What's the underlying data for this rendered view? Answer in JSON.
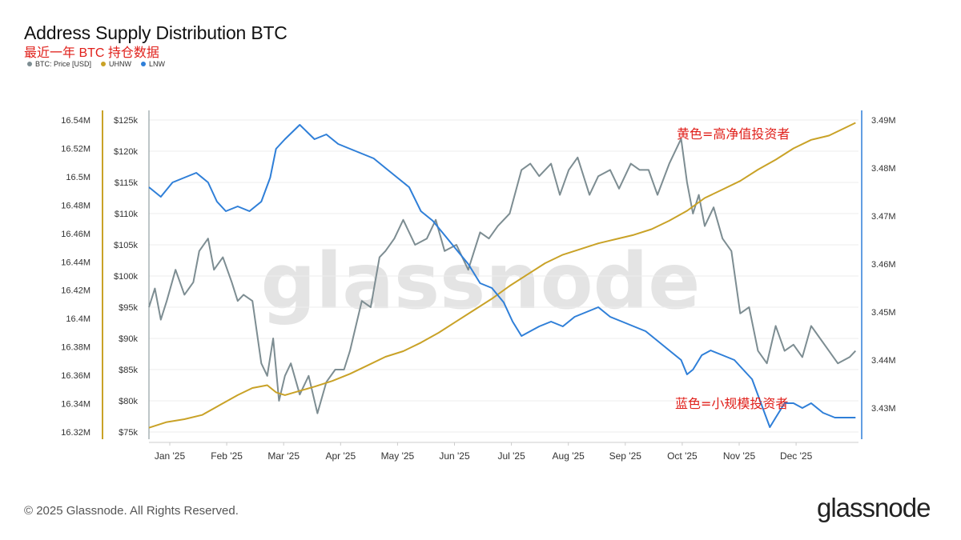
{
  "chart_data": {
    "type": "line",
    "title": "Address Supply Distribution BTC",
    "subtitle": "最近一年 BTC 持仓数据",
    "legend": [
      {
        "name": "BTC: Price [USD]",
        "color": "#7d8d92"
      },
      {
        "name": "UHNW",
        "color": "#c9a227"
      },
      {
        "name": "LNW",
        "color": "#2f7fd8"
      }
    ],
    "x_labels": [
      "Jan '25",
      "Feb '25",
      "Mar '25",
      "Apr '25",
      "May '25",
      "Jun '25",
      "Jul '25",
      "Aug '25",
      "Sep '25",
      "Oct '25",
      "Nov '25",
      "Dec '25"
    ],
    "x_range": [
      0,
      12
    ],
    "axes": {
      "uhnw": {
        "ylim": [
          16.32,
          16.54
        ],
        "ticks": [
          16.32,
          16.34,
          16.36,
          16.38,
          16.4,
          16.42,
          16.44,
          16.46,
          16.48,
          16.5,
          16.52,
          16.54
        ],
        "tick_labels": [
          "16.32M",
          "16.34M",
          "16.36M",
          "16.38M",
          "16.4M",
          "16.42M",
          "16.44M",
          "16.46M",
          "16.48M",
          "16.5M",
          "16.52M",
          "16.54M"
        ]
      },
      "price": {
        "ylim": [
          75,
          125
        ],
        "ticks": [
          75,
          80,
          85,
          90,
          95,
          100,
          105,
          110,
          115,
          120,
          125
        ],
        "tick_labels": [
          "$75k",
          "$80k",
          "$85k",
          "$90k",
          "$95k",
          "$100k",
          "$105k",
          "$110k",
          "$115k",
          "$120k",
          "$125k"
        ]
      },
      "lnw": {
        "ylim": [
          3.425,
          3.49
        ],
        "ticks": [
          3.43,
          3.44,
          3.45,
          3.46,
          3.47,
          3.48,
          3.49
        ],
        "tick_labels": [
          "3.43M",
          "3.44M",
          "3.45M",
          "3.46M",
          "3.47M",
          "3.48M",
          "3.49M"
        ]
      }
    },
    "series": [
      {
        "name": "BTC: Price [USD]",
        "axis": "price",
        "color": "#7d8d92",
        "x": [
          0,
          0.1,
          0.2,
          0.3,
          0.45,
          0.6,
          0.75,
          0.85,
          1.0,
          1.1,
          1.25,
          1.4,
          1.5,
          1.6,
          1.75,
          1.9,
          2.0,
          2.1,
          2.2,
          2.3,
          2.4,
          2.55,
          2.7,
          2.85,
          3.0,
          3.15,
          3.3,
          3.4,
          3.5,
          3.6,
          3.75,
          3.9,
          4.0,
          4.15,
          4.3,
          4.5,
          4.7,
          4.85,
          5.0,
          5.2,
          5.4,
          5.6,
          5.75,
          5.9,
          6.1,
          6.3,
          6.45,
          6.6,
          6.8,
          6.95,
          7.1,
          7.25,
          7.45,
          7.6,
          7.8,
          7.95,
          8.15,
          8.3,
          8.45,
          8.6,
          8.8,
          9.0,
          9.1,
          9.2,
          9.3,
          9.4,
          9.55,
          9.7,
          9.85,
          10.0,
          10.15,
          10.3,
          10.45,
          10.6,
          10.75,
          10.9,
          11.05,
          11.2,
          11.35,
          11.5,
          11.65,
          11.85,
          11.95
        ],
        "values": [
          95,
          98,
          93,
          96,
          101,
          97,
          99,
          104,
          106,
          101,
          103,
          99,
          96,
          97,
          96,
          86,
          84,
          90,
          80,
          84,
          86,
          81,
          84,
          78,
          83,
          85,
          85,
          88,
          92,
          96,
          95,
          103,
          104,
          106,
          109,
          105,
          106,
          109,
          104,
          105,
          101,
          107,
          106,
          108,
          110,
          117,
          118,
          116,
          118,
          113,
          117,
          119,
          113,
          116,
          117,
          114,
          118,
          117,
          117,
          113,
          118,
          122,
          115,
          110,
          113,
          108,
          111,
          106,
          104,
          94,
          95,
          88,
          86,
          92,
          88,
          89,
          87,
          92,
          90,
          88,
          86,
          87,
          88
        ]
      },
      {
        "name": "UHNW",
        "axis": "uhnw",
        "color": "#c9a227",
        "x": [
          0,
          0.3,
          0.6,
          0.9,
          1.2,
          1.5,
          1.75,
          2.0,
          2.15,
          2.3,
          2.55,
          2.8,
          3.1,
          3.4,
          3.7,
          4.0,
          4.3,
          4.6,
          4.9,
          5.2,
          5.5,
          5.8,
          6.1,
          6.4,
          6.7,
          7.0,
          7.3,
          7.6,
          7.9,
          8.2,
          8.5,
          8.8,
          9.1,
          9.4,
          9.7,
          10.0,
          10.3,
          10.6,
          10.9,
          11.2,
          11.5,
          11.8,
          11.95
        ],
        "values": [
          16.323,
          16.327,
          16.329,
          16.332,
          16.339,
          16.346,
          16.351,
          16.353,
          16.348,
          16.346,
          16.349,
          16.352,
          16.356,
          16.361,
          16.367,
          16.373,
          16.377,
          16.383,
          16.39,
          16.398,
          16.406,
          16.414,
          16.423,
          16.431,
          16.439,
          16.445,
          16.449,
          16.453,
          16.456,
          16.459,
          16.463,
          16.469,
          16.476,
          16.485,
          16.491,
          16.497,
          16.505,
          16.512,
          16.52,
          16.526,
          16.529,
          16.535,
          16.538
        ]
      },
      {
        "name": "LNW",
        "axis": "lnw",
        "color": "#2f7fd8",
        "x": [
          0,
          0.2,
          0.4,
          0.6,
          0.8,
          1.0,
          1.15,
          1.3,
          1.5,
          1.7,
          1.9,
          2.05,
          2.15,
          2.3,
          2.55,
          2.8,
          3.0,
          3.2,
          3.4,
          3.6,
          3.8,
          4.0,
          4.2,
          4.4,
          4.6,
          4.8,
          5.0,
          5.2,
          5.4,
          5.6,
          5.8,
          6.0,
          6.15,
          6.3,
          6.45,
          6.6,
          6.8,
          7.0,
          7.2,
          7.4,
          7.6,
          7.8,
          8.0,
          8.2,
          8.4,
          8.6,
          8.8,
          9.0,
          9.1,
          9.2,
          9.35,
          9.5,
          9.7,
          9.9,
          10.05,
          10.2,
          10.35,
          10.5,
          10.6,
          10.75,
          10.9,
          11.05,
          11.2,
          11.4,
          11.6,
          11.8,
          11.95
        ],
        "values": [
          3.476,
          3.474,
          3.477,
          3.478,
          3.479,
          3.477,
          3.473,
          3.471,
          3.472,
          3.471,
          3.473,
          3.478,
          3.484,
          3.486,
          3.489,
          3.486,
          3.487,
          3.485,
          3.484,
          3.483,
          3.482,
          3.48,
          3.478,
          3.476,
          3.471,
          3.469,
          3.466,
          3.463,
          3.46,
          3.456,
          3.455,
          3.452,
          3.448,
          3.445,
          3.446,
          3.447,
          3.448,
          3.447,
          3.449,
          3.45,
          3.451,
          3.449,
          3.448,
          3.447,
          3.446,
          3.444,
          3.442,
          3.44,
          3.437,
          3.438,
          3.441,
          3.442,
          3.441,
          3.44,
          3.438,
          3.436,
          3.431,
          3.426,
          3.428,
          3.431,
          3.431,
          3.43,
          3.431,
          3.429,
          3.428,
          3.428,
          3.428
        ]
      }
    ],
    "annotations": [
      {
        "text": "黄色=高净值投资者",
        "color": "#e0201b"
      },
      {
        "text": "蓝色=小规模投资者",
        "color": "#e0201b"
      }
    ],
    "watermark": "glassnode"
  },
  "footer": {
    "copyright": "© 2025 Glassnode. All Rights Reserved."
  },
  "brand": {
    "logo_text": "glassnode"
  }
}
